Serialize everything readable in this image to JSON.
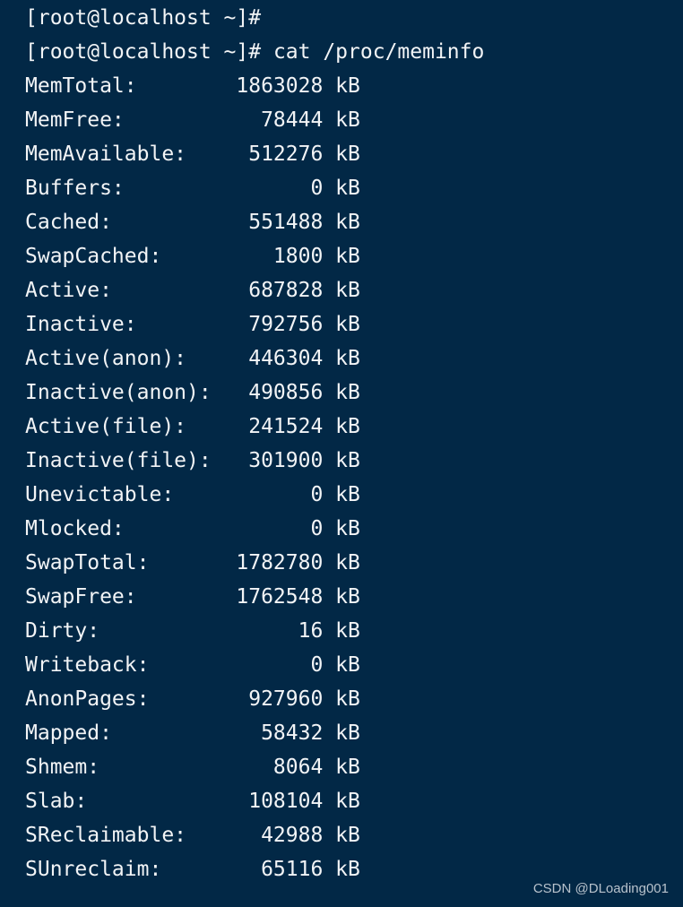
{
  "terminal": {
    "prompt_lines": [
      "[root@localhost ~]#",
      "[root@localhost ~]# cat /proc/meminfo"
    ],
    "unit": "kB",
    "rows": [
      {
        "label": "MemTotal:",
        "value": "1863028"
      },
      {
        "label": "MemFree:",
        "value": "78444"
      },
      {
        "label": "MemAvailable:",
        "value": "512276"
      },
      {
        "label": "Buffers:",
        "value": "0"
      },
      {
        "label": "Cached:",
        "value": "551488"
      },
      {
        "label": "SwapCached:",
        "value": "1800"
      },
      {
        "label": "Active:",
        "value": "687828"
      },
      {
        "label": "Inactive:",
        "value": "792756"
      },
      {
        "label": "Active(anon):",
        "value": "446304"
      },
      {
        "label": "Inactive(anon):",
        "value": "490856"
      },
      {
        "label": "Active(file):",
        "value": "241524"
      },
      {
        "label": "Inactive(file):",
        "value": "301900"
      },
      {
        "label": "Unevictable:",
        "value": "0"
      },
      {
        "label": "Mlocked:",
        "value": "0"
      },
      {
        "label": "SwapTotal:",
        "value": "1782780"
      },
      {
        "label": "SwapFree:",
        "value": "1762548"
      },
      {
        "label": "Dirty:",
        "value": "16"
      },
      {
        "label": "Writeback:",
        "value": "0"
      },
      {
        "label": "AnonPages:",
        "value": "927960"
      },
      {
        "label": "Mapped:",
        "value": "58432"
      },
      {
        "label": "Shmem:",
        "value": "8064"
      },
      {
        "label": "Slab:",
        "value": "108104"
      },
      {
        "label": "SReclaimable:",
        "value": "42988"
      },
      {
        "label": "SUnreclaim:",
        "value": "65116"
      }
    ]
  },
  "watermark": "CSDN @DLoading001",
  "colors": {
    "background": "#022846",
    "text": "#f2f4f6"
  }
}
